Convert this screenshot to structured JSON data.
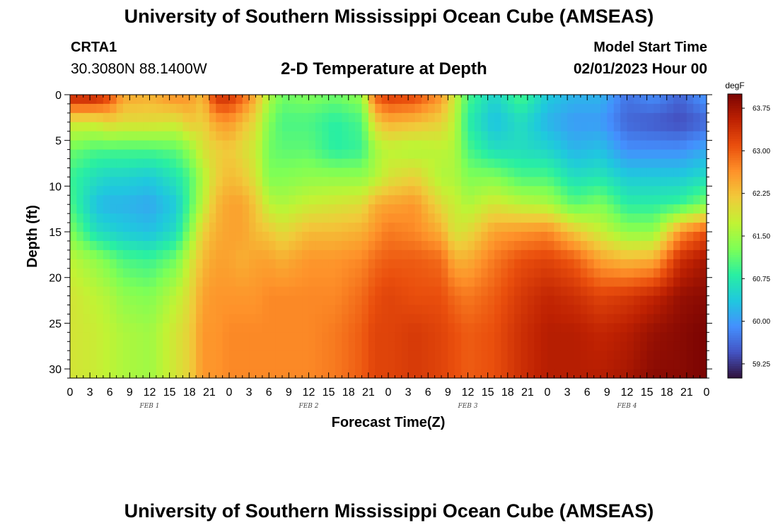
{
  "header": {
    "title": "University of Southern Mississippi Ocean Cube (AMSEAS)",
    "station_id": "CRTA1",
    "coordinates": "30.3080N  88.1400W",
    "plot_title": "2-D Temperature at Depth",
    "model_start_label": "Model Start Time",
    "model_start_value": "02/01/2023 Hour 00"
  },
  "footer": {
    "title": "University of Southern Mississippi Ocean Cube (AMSEAS)"
  },
  "chart_data": {
    "type": "heatmap",
    "title": "2-D Temperature at Depth",
    "xlabel": "Forecast Time(Z)",
    "ylabel": "Depth (ft)",
    "x_range_hours": [
      0,
      96
    ],
    "x_tick_labels": [
      "0",
      "3",
      "6",
      "9",
      "12",
      "15",
      "18",
      "21",
      "0",
      "3",
      "6",
      "9",
      "12",
      "15",
      "18",
      "21",
      "0",
      "3",
      "6",
      "9",
      "12",
      "15",
      "18",
      "21",
      "0",
      "3",
      "6",
      "9",
      "12",
      "15",
      "18",
      "21",
      "0"
    ],
    "day_labels": [
      {
        "label": "FEB 1",
        "hour": 12
      },
      {
        "label": "FEB 2",
        "hour": 36
      },
      {
        "label": "FEB 3",
        "hour": 60
      },
      {
        "label": "FEB 4",
        "hour": 84
      }
    ],
    "y_range_ft": [
      0,
      31
    ],
    "y_ticks": [
      0,
      5,
      10,
      15,
      20,
      25,
      30
    ],
    "colorbar": {
      "unit": "degF",
      "range": [
        59.0,
        64.0
      ],
      "ticks": [
        "63.75",
        "63.00",
        "62.25",
        "61.50",
        "60.75",
        "60.00",
        "59.25"
      ],
      "colors": [
        "#30123b",
        "#4454c4",
        "#4490fe",
        "#1fc8de",
        "#29efa2",
        "#7dff56",
        "#c1f334",
        "#f1ca3a",
        "#fe922a",
        "#ea4f0d",
        "#be2102",
        "#7a0403"
      ]
    },
    "depth_profile_ft": [
      0,
      3,
      6,
      9,
      12,
      15,
      18,
      22,
      26,
      31
    ],
    "time_profile_hours": [
      0,
      4,
      6,
      8,
      12,
      16,
      18,
      20,
      22,
      24,
      26,
      28,
      30,
      32,
      36,
      40,
      44,
      46,
      48,
      52,
      56,
      58,
      60,
      64,
      68,
      72,
      76,
      80,
      84,
      88,
      92,
      96
    ],
    "temperature_f": [
      [
        63.6,
        61.9,
        61.2,
        60.9,
        61.0,
        61.3,
        61.7,
        61.9,
        61.9,
        61.9
      ],
      [
        63.6,
        61.9,
        61.0,
        60.6,
        60.3,
        60.6,
        61.4,
        61.7,
        61.8,
        61.8
      ],
      [
        63.2,
        62.1,
        61.0,
        60.5,
        60.2,
        60.5,
        61.2,
        61.6,
        61.7,
        61.7
      ],
      [
        62.5,
        62.0,
        61.0,
        60.5,
        60.2,
        60.4,
        61.0,
        61.4,
        61.6,
        61.6
      ],
      [
        62.4,
        62.0,
        61.0,
        60.4,
        60.1,
        60.3,
        60.9,
        61.3,
        61.5,
        61.5
      ],
      [
        62.7,
        61.9,
        61.1,
        60.7,
        60.4,
        60.6,
        61.2,
        61.7,
        61.9,
        61.9
      ],
      [
        62.6,
        62.2,
        61.4,
        61.0,
        61.0,
        61.3,
        61.8,
        62.0,
        62.1,
        62.1
      ],
      [
        62.3,
        62.1,
        61.9,
        61.6,
        61.7,
        62.1,
        62.3,
        62.5,
        62.6,
        62.6
      ],
      [
        63.4,
        62.5,
        62.1,
        62.1,
        62.3,
        62.4,
        62.5,
        62.6,
        62.6,
        62.6
      ],
      [
        63.4,
        62.6,
        62.2,
        62.3,
        62.5,
        62.5,
        62.5,
        62.6,
        62.7,
        62.7
      ],
      [
        63.0,
        62.3,
        62.0,
        62.2,
        62.5,
        62.5,
        62.4,
        62.6,
        62.7,
        62.7
      ],
      [
        62.4,
        62.0,
        61.8,
        61.9,
        62.2,
        62.3,
        62.5,
        62.6,
        62.7,
        62.7
      ],
      [
        61.6,
        61.3,
        61.2,
        61.3,
        61.7,
        62.2,
        62.5,
        62.7,
        62.7,
        62.7
      ],
      [
        61.2,
        61.0,
        61.1,
        61.3,
        61.6,
        62.0,
        62.4,
        62.7,
        62.7,
        62.7
      ],
      [
        61.3,
        61.0,
        61.1,
        61.4,
        61.8,
        62.3,
        62.6,
        62.7,
        62.7,
        62.7
      ],
      [
        61.2,
        60.8,
        60.8,
        61.4,
        61.9,
        62.3,
        62.6,
        62.7,
        62.8,
        62.8
      ],
      [
        61.4,
        61.0,
        60.9,
        61.4,
        62.0,
        62.4,
        62.7,
        62.9,
        63.0,
        63.0
      ],
      [
        63.0,
        62.1,
        61.5,
        61.6,
        62.4,
        62.6,
        62.9,
        63.1,
        63.2,
        63.2
      ],
      [
        63.3,
        62.4,
        61.7,
        61.9,
        62.5,
        62.8,
        63.0,
        63.2,
        63.2,
        63.2
      ],
      [
        63.2,
        62.3,
        61.6,
        62.1,
        62.6,
        62.7,
        63.0,
        63.1,
        63.3,
        63.3
      ],
      [
        62.6,
        62.1,
        61.7,
        61.6,
        62.0,
        62.4,
        62.9,
        63.1,
        63.2,
        63.2
      ],
      [
        61.8,
        61.7,
        61.6,
        61.6,
        61.8,
        61.9,
        62.4,
        62.9,
        63.1,
        63.1
      ],
      [
        61.0,
        60.8,
        61.0,
        61.3,
        61.6,
        62.0,
        62.4,
        62.8,
        63.0,
        63.0
      ],
      [
        60.5,
        60.3,
        60.6,
        61.3,
        61.9,
        62.5,
        62.8,
        63.0,
        63.1,
        63.1
      ],
      [
        61.0,
        60.6,
        60.6,
        61.0,
        61.7,
        62.6,
        63.1,
        63.3,
        63.4,
        63.4
      ],
      [
        60.4,
        60.2,
        60.5,
        61.0,
        61.6,
        62.7,
        63.2,
        63.5,
        63.6,
        63.6
      ],
      [
        60.2,
        60.0,
        60.2,
        60.6,
        61.1,
        62.2,
        63.0,
        63.4,
        63.6,
        63.6
      ],
      [
        60.2,
        60.0,
        60.3,
        60.7,
        61.3,
        61.8,
        62.5,
        63.2,
        63.5,
        63.6
      ],
      [
        59.7,
        59.6,
        59.9,
        60.4,
        60.8,
        61.4,
        62.3,
        63.3,
        63.6,
        63.7
      ],
      [
        59.9,
        59.5,
        59.9,
        60.4,
        60.8,
        61.4,
        62.4,
        63.5,
        63.8,
        63.9
      ],
      [
        59.6,
        59.4,
        59.9,
        60.4,
        60.9,
        62.6,
        63.4,
        63.8,
        63.9,
        63.9
      ],
      [
        60.0,
        59.6,
        60.1,
        60.6,
        61.3,
        63.1,
        63.7,
        63.9,
        64.0,
        64.0
      ]
    ]
  }
}
